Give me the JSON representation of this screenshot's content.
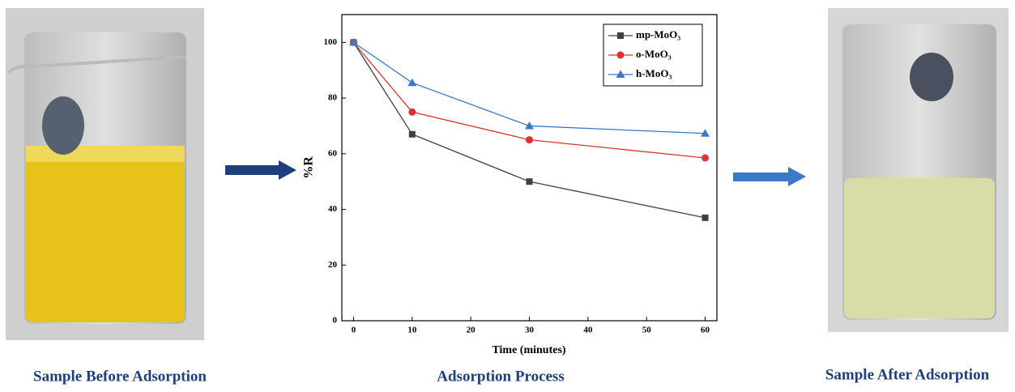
{
  "chart_data": {
    "type": "line",
    "x_label": "Time (minutes)",
    "y_label": "%R",
    "x": [
      0,
      10,
      30,
      60
    ],
    "series": [
      {
        "name": "mp-MoO₃",
        "color": "#404040",
        "marker": "square",
        "values": [
          100,
          67,
          50,
          37
        ]
      },
      {
        "name": "o-MoO₃",
        "color": "#e03030",
        "marker": "circle",
        "values": [
          100,
          75,
          65,
          58.5
        ]
      },
      {
        "name": "h-MoO₃",
        "color": "#3a78c8",
        "marker": "triangle",
        "values": [
          100,
          85.5,
          70,
          67.3
        ]
      }
    ],
    "xlim": [
      -2,
      62
    ],
    "xticks": [
      0,
      10,
      20,
      30,
      40,
      50,
      60
    ],
    "ylim": [
      0,
      110
    ],
    "yticks": [
      0,
      20,
      40,
      60,
      80,
      100
    ],
    "legend": "top-right"
  },
  "captions": {
    "before": "Sample Before Adsorption",
    "process": "Adsorption Process",
    "after": "Sample After Adsorption"
  }
}
